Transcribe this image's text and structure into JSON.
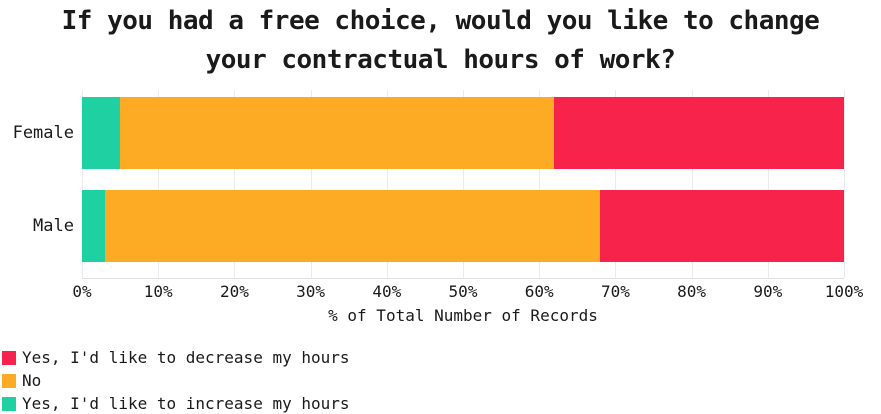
{
  "title": {
    "lines": [
      "If you had a free choice, would you like to change",
      "your contractual hours of work?"
    ]
  },
  "chart_data": {
    "type": "bar",
    "orientation": "horizontal",
    "stacked": true,
    "categories": [
      "Female",
      "Male"
    ],
    "series": [
      {
        "name": "Yes, I'd like to increase my hours",
        "color": "#1ED0A2",
        "values": [
          5,
          3
        ]
      },
      {
        "name": "No",
        "color": "#FDAB25",
        "values": [
          57,
          65
        ]
      },
      {
        "name": "Yes, I'd like to decrease my hours",
        "color": "#F8234B",
        "values": [
          38,
          32
        ]
      }
    ],
    "x_ticks": [
      "0%",
      "10%",
      "20%",
      "30%",
      "40%",
      "50%",
      "60%",
      "70%",
      "80%",
      "90%",
      "100%"
    ],
    "xlabel": "% of Total Number of Records",
    "xlim": [
      0,
      100
    ],
    "grid": true,
    "legend_position": "bottom-left",
    "legend_order": [
      "Yes, I'd like to decrease my hours",
      "No",
      "Yes, I'd like to increase my hours"
    ]
  },
  "style": {
    "background": "#ffffff",
    "text_color": "#1a1a1a",
    "gridline_color": "#ebebeb",
    "axis_line_color": "#e0e0e0"
  }
}
